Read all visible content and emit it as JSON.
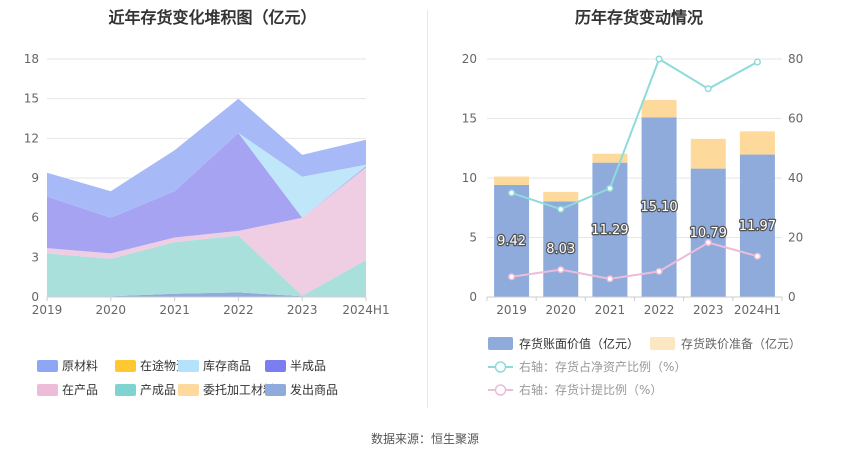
{
  "footer": {
    "source": "数据来源：恒生聚源"
  },
  "chart_data": [
    {
      "type": "area",
      "title": "近年存货变化堆积图（亿元）",
      "categories": [
        "2019",
        "2020",
        "2021",
        "2022",
        "2023",
        "2024H1"
      ],
      "ylim": [
        0,
        18
      ],
      "yticks": [
        0,
        3,
        6,
        9,
        12,
        15,
        18
      ],
      "grid": true,
      "legend_position": "bottom",
      "series": [
        {
          "name": "发出商品",
          "color": "#8faadc",
          "values": [
            0.05,
            0.05,
            0.25,
            0.35,
            0.05,
            0.05
          ]
        },
        {
          "name": "产成品",
          "color": "#a9e0dc",
          "values": [
            3.25,
            2.85,
            3.9,
            4.3,
            0.05,
            2.75
          ]
        },
        {
          "name": "委托加工材料",
          "color": "#fdd99b",
          "values": [
            0,
            0,
            0,
            0,
            0,
            0
          ]
        },
        {
          "name": "在产品",
          "color": "#efcde2",
          "values": [
            0.4,
            0.4,
            0.35,
            0.35,
            5.9,
            7.0
          ]
        },
        {
          "name": "半成品",
          "color": "#a5a3f2",
          "values": [
            3.9,
            2.7,
            3.5,
            7.4,
            0,
            0.1
          ]
        },
        {
          "name": "库存商品",
          "color": "#c0e6fa",
          "values": [
            0,
            0,
            0,
            0,
            3.1,
            0.1
          ]
        },
        {
          "name": "在途物资",
          "color": "#ffc833",
          "values": [
            0,
            0,
            0,
            0,
            0,
            0
          ]
        },
        {
          "name": "原材料",
          "color": "#a8b9f7",
          "values": [
            1.8,
            2.0,
            3.1,
            2.6,
            1.65,
            1.9
          ]
        }
      ],
      "legend": [
        {
          "name": "原材料",
          "color": "#8ea7f5"
        },
        {
          "name": "在途物资",
          "color": "#ffc833"
        },
        {
          "name": "库存商品",
          "color": "#b3e2fa"
        },
        {
          "name": "半成品",
          "color": "#7b7ef0"
        },
        {
          "name": "在产品",
          "color": "#ecbcd9"
        },
        {
          "name": "产成品",
          "color": "#7fd4d0"
        },
        {
          "name": "委托加工材料",
          "color": "#fdd99b"
        },
        {
          "name": "发出商品",
          "color": "#8faadc"
        }
      ]
    },
    {
      "type": "bar+line",
      "title": "历年存货变动情况",
      "categories": [
        "2019",
        "2020",
        "2021",
        "2022",
        "2023",
        "2024H1"
      ],
      "ylim_left": [
        0,
        20
      ],
      "yticks_left": [
        0,
        5,
        10,
        15,
        20
      ],
      "ylim_right": [
        0,
        80
      ],
      "yticks_right": [
        0,
        20,
        40,
        60,
        80
      ],
      "legend_position": "bottom",
      "bars": [
        {
          "name": "存货账面价值（亿元）",
          "color": "#8eabdb",
          "values": [
            9.42,
            8.03,
            11.29,
            15.1,
            10.79,
            11.97
          ],
          "labels": [
            "9.42",
            "8.03",
            "11.29",
            "15.10",
            "10.79",
            "11.97"
          ]
        },
        {
          "name": "存货跌价准备（亿元）",
          "color": "#fdd99b",
          "values": [
            0.7,
            0.8,
            0.75,
            1.45,
            2.5,
            1.95
          ]
        }
      ],
      "lines": [
        {
          "name": "右轴：存货占净资产比例（%）",
          "color": "#8fdbdb",
          "values": [
            35,
            29.5,
            36.5,
            80,
            70,
            79
          ]
        },
        {
          "name": "右轴：存货计提比例（%）",
          "color": "#ecbcd9",
          "values": [
            6.8,
            9.2,
            6.1,
            8.6,
            18.3,
            13.7
          ]
        }
      ]
    }
  ]
}
